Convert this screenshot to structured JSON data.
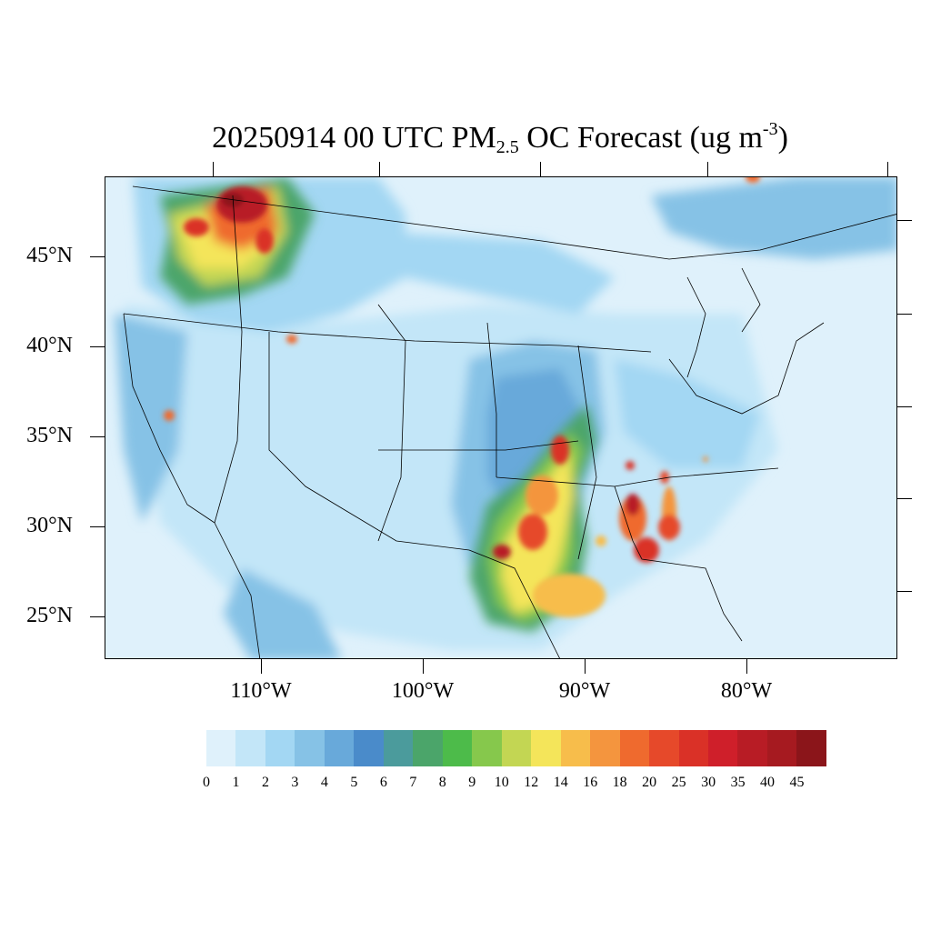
{
  "title": {
    "prefix": "20250914 00 UTC PM",
    "subscript": "2.5",
    "middle": " OC Forecast (ug m",
    "superscript": "-3",
    "suffix": ")"
  },
  "map": {
    "lat_labels": [
      "45°N",
      "40°N",
      "35°N",
      "30°N",
      "25°N"
    ],
    "lon_labels": [
      "110°W",
      "100°W",
      "90°W",
      "80°W"
    ]
  },
  "colorbar": {
    "labels": [
      "0",
      "1",
      "2",
      "3",
      "4",
      "5",
      "6",
      "7",
      "8",
      "9",
      "10",
      "12",
      "14",
      "16",
      "18",
      "20",
      "25",
      "30",
      "35",
      "40",
      "45"
    ],
    "colors": [
      "#dff1fb",
      "#c3e6f8",
      "#a3d7f3",
      "#86c2e6",
      "#68a9da",
      "#4a8bca",
      "#4b9b9c",
      "#4ba56a",
      "#4dbb4a",
      "#86c84c",
      "#c3d653",
      "#f4e55a",
      "#f7bd4b",
      "#f4953e",
      "#ef6a2e",
      "#e6492a",
      "#da3127",
      "#cf1f2a",
      "#b81c25",
      "#a61a20",
      "#8b151a"
    ]
  }
}
